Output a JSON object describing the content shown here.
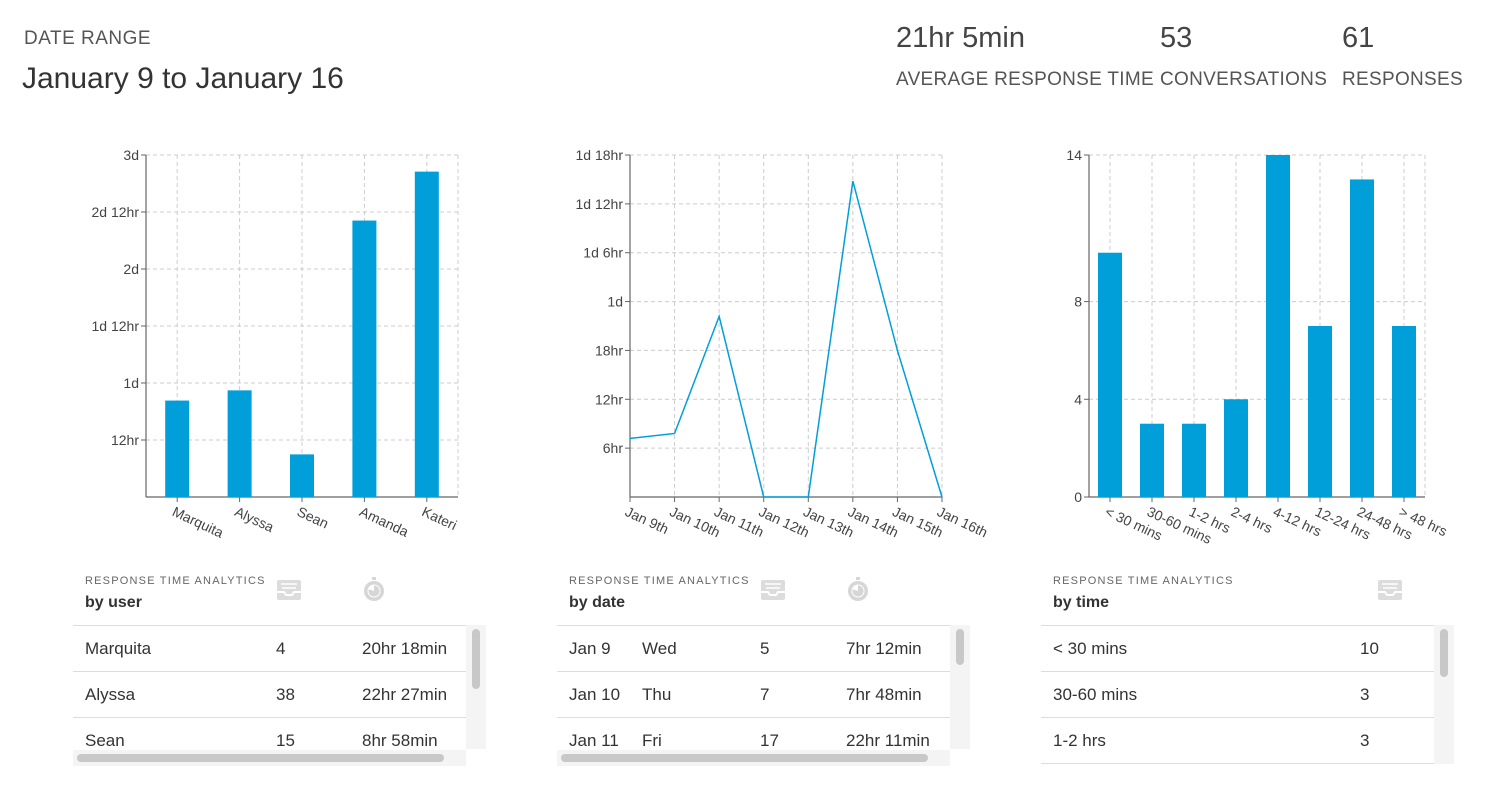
{
  "header": {
    "date_label": "DATE RANGE",
    "date_range": "January 9 to January 16",
    "metrics": [
      {
        "value": "21hr 5min",
        "label": "AVERAGE RESPONSE TIME"
      },
      {
        "value": "53",
        "label": "CONVERSATIONS"
      },
      {
        "value": "61",
        "label": "RESPONSES"
      }
    ]
  },
  "colors": {
    "accent": "#009fd9",
    "grid": "#cccccc",
    "axis": "#666666"
  },
  "chart_data": [
    {
      "type": "bar",
      "categories": [
        "Marquita",
        "Alyssa",
        "Sean",
        "Amanda",
        "Kateri"
      ],
      "values": [
        20.3,
        22.45,
        8.97,
        58.2,
        68.5
      ],
      "ylim": [
        0,
        72
      ],
      "unit": "hours",
      "yticks": [
        12,
        24,
        36,
        48,
        60,
        72
      ],
      "ytick_labels": [
        "12hr",
        "1d",
        "1d 12hr",
        "2d",
        "2d 12hr",
        "3d"
      ],
      "grid": true
    },
    {
      "type": "line",
      "categories": [
        "Jan 9th",
        "Jan 10th",
        "Jan 11th",
        "Jan 12th",
        "Jan 13th",
        "Jan 14th",
        "Jan 15th",
        "Jan 16th"
      ],
      "values": [
        7.2,
        7.8,
        22.18,
        0,
        0,
        38.8,
        18.0,
        0
      ],
      "ylim": [
        0,
        42
      ],
      "unit": "hours",
      "yticks": [
        6,
        12,
        18,
        24,
        30,
        36,
        42
      ],
      "ytick_labels": [
        "6hr",
        "12hr",
        "18hr",
        "1d",
        "1d 6hr",
        "1d 12hr",
        "1d 18hr"
      ],
      "grid": true
    },
    {
      "type": "bar",
      "categories": [
        "< 30 mins",
        "30-60 mins",
        "1-2 hrs",
        "2-4 hrs",
        "4-12 hrs",
        "12-24 hrs",
        "24-48 hrs",
        "> 48 hrs"
      ],
      "values": [
        10,
        3,
        3,
        4,
        14,
        7,
        13,
        7
      ],
      "ylim": [
        0,
        14
      ],
      "yticks": [
        0,
        4,
        8,
        14
      ],
      "ytick_labels": [
        "0",
        "4",
        "8",
        "14"
      ],
      "grid": true
    }
  ],
  "tables": {
    "user": {
      "caption": "RESPONSE TIME ANALYTICS",
      "title": "by user",
      "header_icons": [
        "inbox-icon",
        "stopwatch-icon"
      ],
      "rows": [
        [
          "Marquita",
          "4",
          "20hr 18min"
        ],
        [
          "Alyssa",
          "38",
          "22hr 27min"
        ],
        [
          "Sean",
          "15",
          "8hr 58min"
        ]
      ]
    },
    "date": {
      "caption": "RESPONSE TIME ANALYTICS",
      "title": "by date",
      "header_icons": [
        "inbox-icon",
        "stopwatch-icon"
      ],
      "rows": [
        [
          "Jan 9",
          "Wed",
          "5",
          "7hr 12min"
        ],
        [
          "Jan 10",
          "Thu",
          "7",
          "7hr 48min"
        ],
        [
          "Jan 11",
          "Fri",
          "17",
          "22hr 11min"
        ]
      ]
    },
    "time": {
      "caption": "RESPONSE TIME ANALYTICS",
      "title": "by time",
      "header_icons": [
        "inbox-icon"
      ],
      "rows": [
        [
          "< 30 mins",
          "10"
        ],
        [
          "30-60 mins",
          "3"
        ],
        [
          "1-2 hrs",
          "3"
        ]
      ]
    }
  }
}
